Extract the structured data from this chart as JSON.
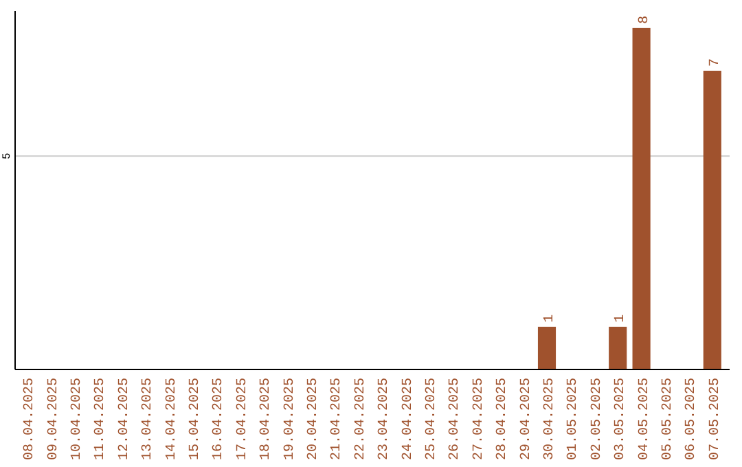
{
  "chart_data": {
    "type": "bar",
    "categories": [
      "08.04.2025",
      "09.04.2025",
      "10.04.2025",
      "11.04.2025",
      "12.04.2025",
      "13.04.2025",
      "14.04.2025",
      "15.04.2025",
      "16.04.2025",
      "17.04.2025",
      "18.04.2025",
      "19.04.2025",
      "20.04.2025",
      "21.04.2025",
      "22.04.2025",
      "23.04.2025",
      "24.04.2025",
      "25.04.2025",
      "26.04.2025",
      "27.04.2025",
      "28.04.2025",
      "29.04.2025",
      "30.04.2025",
      "01.05.2025",
      "02.05.2025",
      "03.05.2025",
      "04.05.2025",
      "05.05.2025",
      "06.05.2025",
      "07.05.2025"
    ],
    "values": [
      null,
      null,
      null,
      null,
      null,
      null,
      null,
      null,
      null,
      null,
      null,
      null,
      null,
      null,
      null,
      null,
      null,
      null,
      null,
      null,
      null,
      null,
      1,
      null,
      null,
      1,
      8,
      null,
      null,
      7
    ],
    "data_labels": true,
    "ylim": [
      0,
      8.4
    ],
    "color": "#a0522d",
    "ref_lines": [
      {
        "axis": "y",
        "value": 5,
        "label": "5",
        "color": "#cccccc"
      }
    ]
  }
}
